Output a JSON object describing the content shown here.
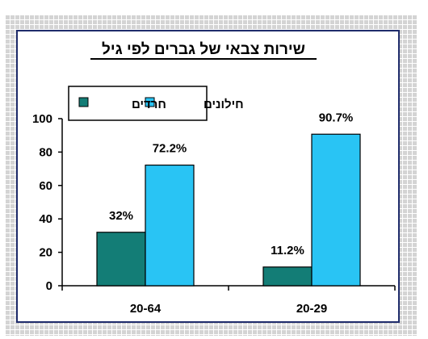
{
  "chart_data": {
    "type": "bar",
    "title": "שירות צבאי של גברים לפי גיל",
    "xlabel": "",
    "ylabel": "",
    "ylim": [
      0,
      100
    ],
    "yticks": [
      "0",
      "20",
      "40",
      "60",
      "80",
      "100"
    ],
    "categories": [
      "20-64",
      "20-29"
    ],
    "series": [
      {
        "name": "חרדים",
        "color": "#137d76",
        "values": [
          32,
          11.2
        ],
        "labels": [
          "32%",
          "11.2%"
        ]
      },
      {
        "name": "חילונים",
        "color": "#29c4f4",
        "values": [
          72.2,
          90.7
        ],
        "labels": [
          "72.2%",
          "90.7%"
        ]
      }
    ],
    "grid": false,
    "legend": "top-left"
  }
}
